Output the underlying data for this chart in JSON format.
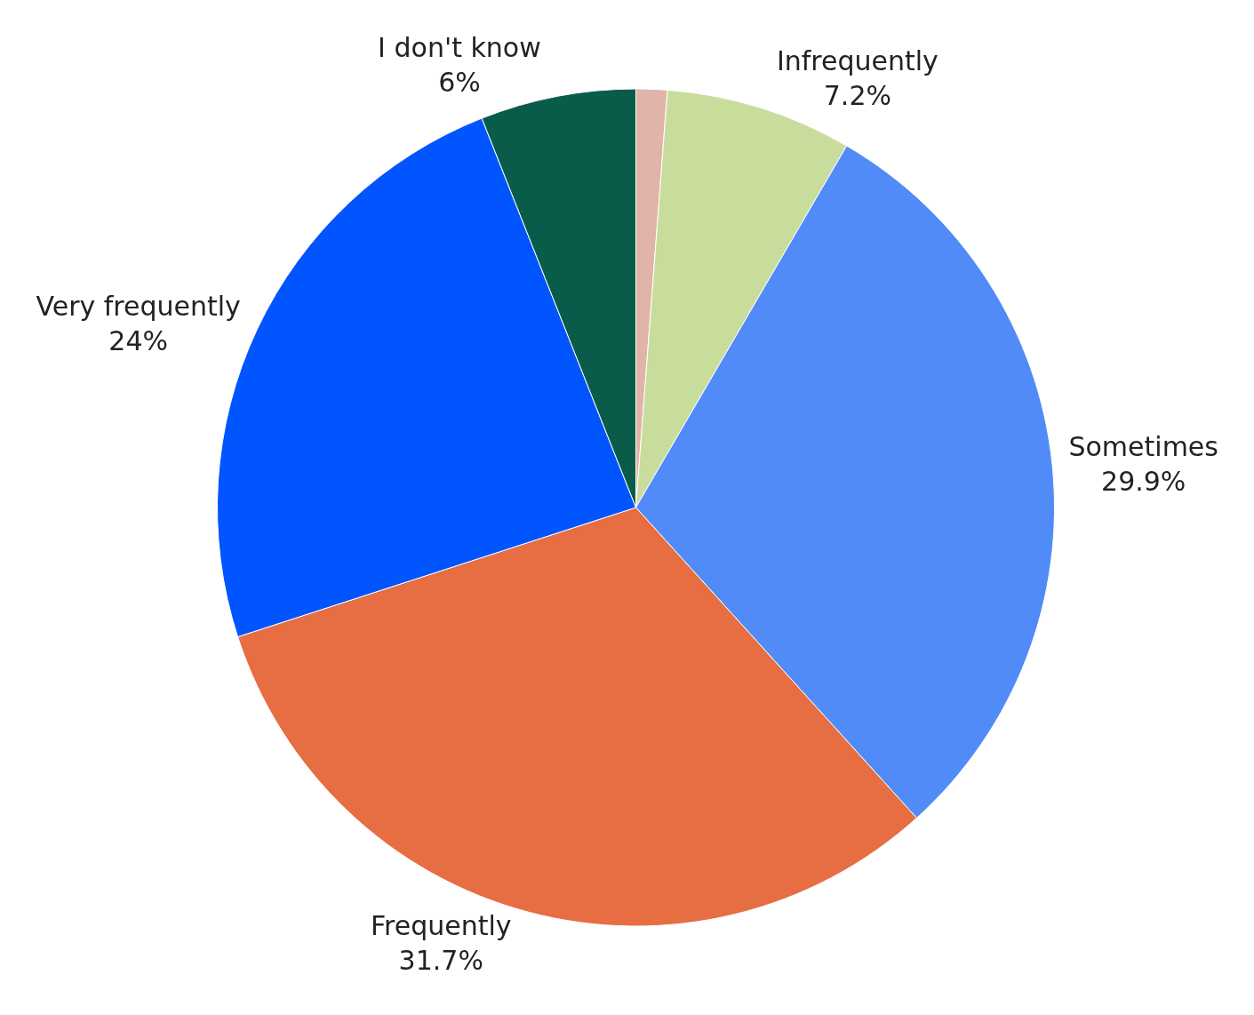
{
  "chart_data": {
    "type": "pie",
    "categories": [
      null,
      "Infrequently",
      "Sometimes",
      "Frequently",
      "Very frequently",
      "I don't know"
    ],
    "values": [
      1.2,
      7.2,
      29.9,
      31.7,
      24,
      6
    ],
    "value_labels": [
      null,
      "7.2%",
      "29.9%",
      "31.7%",
      "24%",
      "6%"
    ],
    "colors": [
      "#e0b4a8",
      "#c8dd9c",
      "#518bf8",
      "#e76d42",
      "#0055ff",
      "#0a5c4a"
    ],
    "legend": false
  }
}
